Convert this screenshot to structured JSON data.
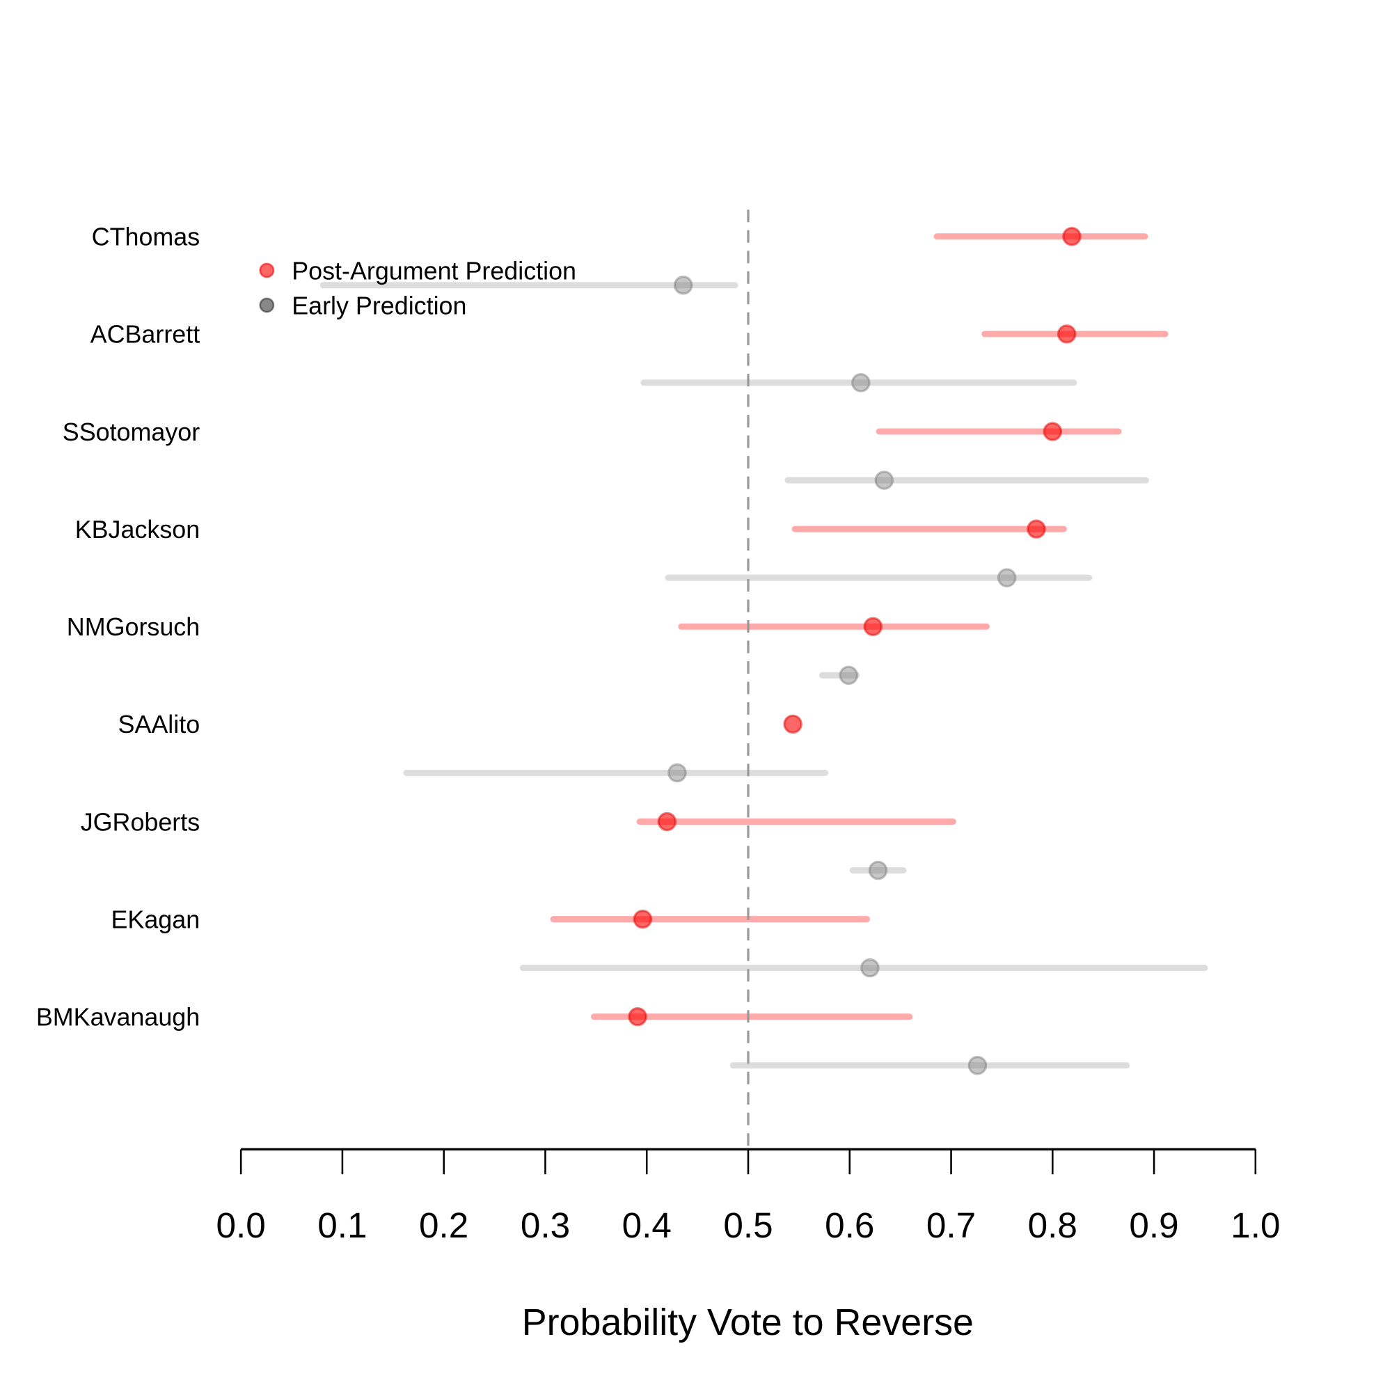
{
  "chart_data": {
    "type": "dot-interval",
    "xlabel": "Probability Vote to Reverse",
    "xlim": [
      0,
      1
    ],
    "xticks": [
      "0.0",
      "0.1",
      "0.2",
      "0.3",
      "0.4",
      "0.5",
      "0.6",
      "0.7",
      "0.8",
      "0.9",
      "1.0"
    ],
    "reference_line": 0.5,
    "legend": {
      "placement": "top-left",
      "entries": [
        "Post-Argument Prediction",
        "Early Prediction"
      ]
    },
    "colors": {
      "post": "#ff0000",
      "early": "#808080",
      "post_interval": "#ffaaaa",
      "early_interval": "#dddddd"
    },
    "justices": [
      "CThomas",
      "ACBarrett",
      "SSotomayor",
      "KBJackson",
      "NMGorsuch",
      "SAAlito",
      "JGRoberts",
      "EKagan",
      "BMKavanaugh"
    ],
    "series": [
      {
        "name": "Post-Argument Prediction",
        "values": [
          0.819,
          0.814,
          0.8,
          0.784,
          0.623,
          0.544,
          0.42,
          0.396,
          0.391
        ],
        "lower": [
          0.686,
          0.733,
          0.629,
          0.546,
          0.434,
          0.544,
          0.393,
          0.308,
          0.348
        ],
        "upper": [
          0.891,
          0.911,
          0.865,
          0.811,
          0.735,
          0.544,
          0.702,
          0.617,
          0.659
        ]
      },
      {
        "name": "Early Prediction",
        "values": [
          0.436,
          0.611,
          0.634,
          0.755,
          0.599,
          0.43,
          0.628,
          0.62,
          0.726
        ],
        "lower": [
          0.081,
          0.397,
          0.539,
          0.421,
          0.573,
          0.163,
          0.603,
          0.278,
          0.485
        ],
        "upper": [
          0.487,
          0.821,
          0.892,
          0.836,
          0.607,
          0.576,
          0.653,
          0.95,
          0.873
        ]
      }
    ]
  }
}
